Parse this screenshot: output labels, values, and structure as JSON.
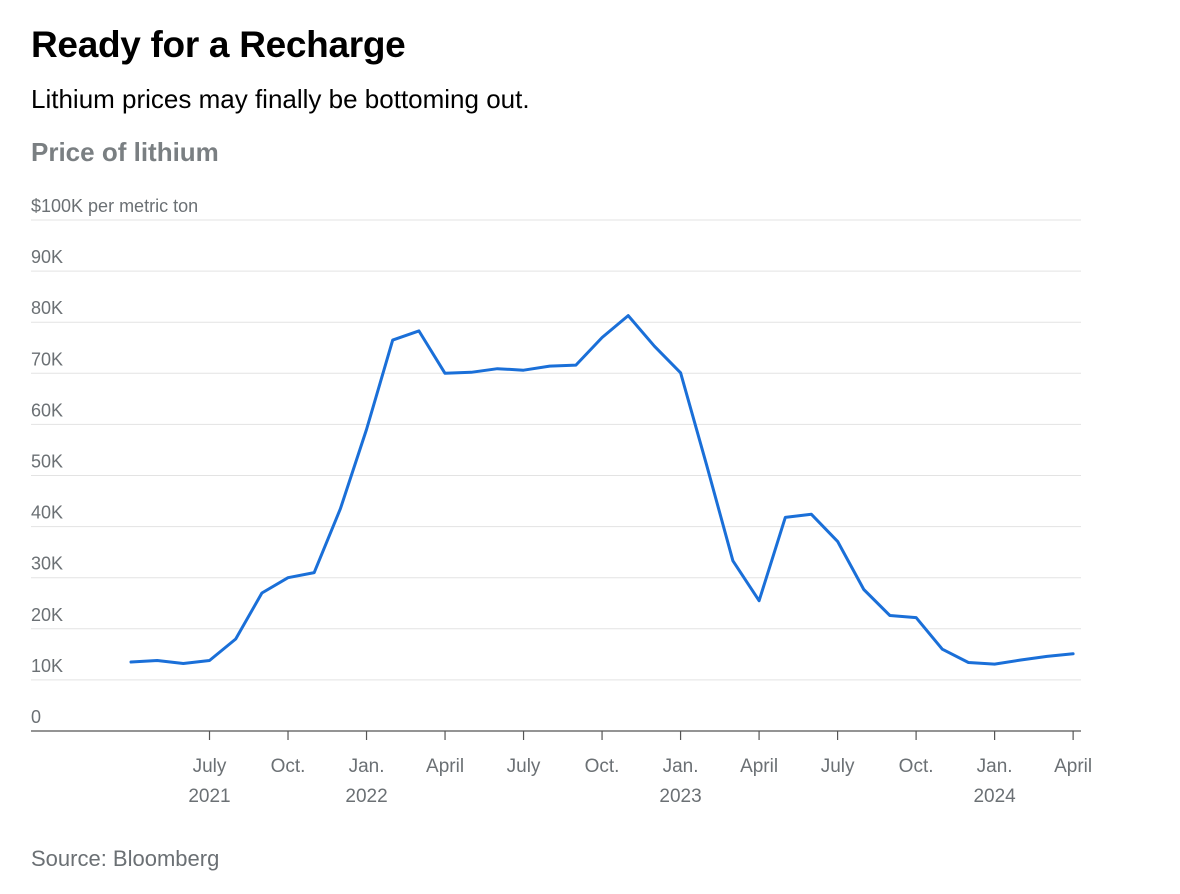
{
  "header": {
    "title": "Ready for a Recharge",
    "subtitle": "Lithium prices may finally be bottoming out.",
    "chart_title": "Price of lithium"
  },
  "footer": {
    "source": "Source: Bloomberg"
  },
  "colors": {
    "line": "#1a6fd8",
    "grid": "#e3e3e3",
    "axis": "#555555",
    "text": "#6b7074"
  },
  "chart_data": {
    "type": "line",
    "title": "Price of lithium",
    "ylabel": "$100K per metric ton",
    "ylim": [
      0,
      100000
    ],
    "y_ticks": [
      {
        "value": 0,
        "label": "0"
      },
      {
        "value": 10000,
        "label": "10K"
      },
      {
        "value": 20000,
        "label": "20K"
      },
      {
        "value": 30000,
        "label": "30K"
      },
      {
        "value": 40000,
        "label": "40K"
      },
      {
        "value": 50000,
        "label": "50K"
      },
      {
        "value": 60000,
        "label": "60K"
      },
      {
        "value": 70000,
        "label": "70K"
      },
      {
        "value": 80000,
        "label": "80K"
      },
      {
        "value": 90000,
        "label": "90K"
      },
      {
        "value": 100000,
        "label": "$100K per metric ton"
      }
    ],
    "x_range": [
      "2021-03",
      "2024-05"
    ],
    "x_ticks": [
      {
        "date": "2021-07",
        "label": "July",
        "year": "2021"
      },
      {
        "date": "2021-10",
        "label": "Oct.",
        "year": ""
      },
      {
        "date": "2022-01",
        "label": "Jan.",
        "year": "2022"
      },
      {
        "date": "2022-04",
        "label": "April",
        "year": ""
      },
      {
        "date": "2022-07",
        "label": "July",
        "year": ""
      },
      {
        "date": "2022-10",
        "label": "Oct.",
        "year": ""
      },
      {
        "date": "2023-01",
        "label": "Jan.",
        "year": "2023"
      },
      {
        "date": "2023-04",
        "label": "April",
        "year": ""
      },
      {
        "date": "2023-07",
        "label": "July",
        "year": ""
      },
      {
        "date": "2023-10",
        "label": "Oct.",
        "year": ""
      },
      {
        "date": "2024-01",
        "label": "Jan.",
        "year": "2024"
      },
      {
        "date": "2024-04",
        "label": "April",
        "year": ""
      }
    ],
    "series": [
      {
        "name": "Price of lithium",
        "x": [
          "2021-04",
          "2021-05",
          "2021-06",
          "2021-07",
          "2021-08",
          "2021-09",
          "2021-10",
          "2021-11",
          "2021-12",
          "2022-01",
          "2022-02",
          "2022-03",
          "2022-04",
          "2022-05",
          "2022-06",
          "2022-07",
          "2022-08",
          "2022-09",
          "2022-10",
          "2022-11",
          "2022-12",
          "2023-01",
          "2023-02",
          "2023-03",
          "2023-04",
          "2023-05",
          "2023-06",
          "2023-07",
          "2023-08",
          "2023-09",
          "2023-10",
          "2023-11",
          "2023-12",
          "2024-01",
          "2024-02",
          "2024-03",
          "2024-04",
          "2024-05"
        ],
        "values": [
          13500,
          13800,
          13200,
          13800,
          18000,
          27000,
          30000,
          31000,
          43500,
          59000,
          76500,
          78300,
          70000,
          70200,
          70900,
          70600,
          71400,
          71600,
          77000,
          81300,
          75300,
          70100,
          52000,
          33300,
          25500,
          41800,
          42400,
          37100,
          27700,
          22600,
          22200,
          16000,
          13400,
          13100,
          13900,
          14600,
          15100,
          null
        ]
      }
    ]
  }
}
